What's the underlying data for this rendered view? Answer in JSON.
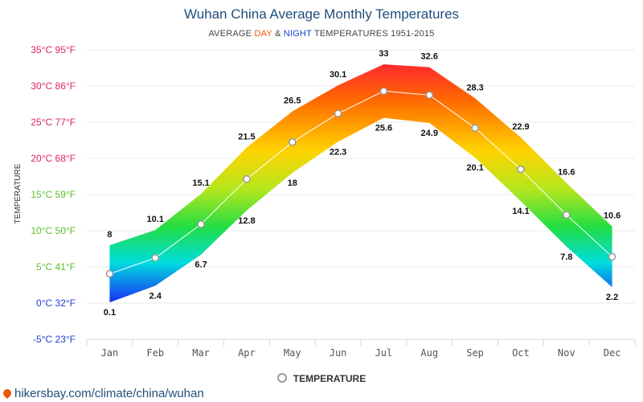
{
  "title": "Wuhan China Average Monthly Temperatures",
  "subtitle": {
    "prefix": "AVERAGE ",
    "day": "DAY",
    "amp": " & ",
    "night": "NIGHT",
    "suffix": " TEMPERATURES 1951-2015"
  },
  "legend": {
    "label": "TEMPERATURE"
  },
  "footer": {
    "url": "hikersbay.com/climate/china/wuhan"
  },
  "colors": {
    "title": "#1f4e79",
    "day": "#e8590c",
    "night": "#1c3fd1"
  },
  "chart_data": {
    "type": "area",
    "title": "Wuhan China Average Monthly Temperatures",
    "ylabel": "TEMPERATURE",
    "ylim": [
      -5,
      35
    ],
    "y_ticks": [
      {
        "value": 35,
        "label": "35°C 95°F",
        "color": "#e0245e"
      },
      {
        "value": 30,
        "label": "30°C 86°F",
        "color": "#e0245e"
      },
      {
        "value": 25,
        "label": "25°C 77°F",
        "color": "#e0245e"
      },
      {
        "value": 20,
        "label": "20°C 68°F",
        "color": "#e0245e"
      },
      {
        "value": 15,
        "label": "15°C 59°F",
        "color": "#5cbf2a"
      },
      {
        "value": 10,
        "label": "10°C 50°F",
        "color": "#5cbf2a"
      },
      {
        "value": 5,
        "label": "5°C 41°F",
        "color": "#5cbf2a"
      },
      {
        "value": 0,
        "label": "0°C 32°F",
        "color": "#1c3fd1"
      },
      {
        "value": -5,
        "label": "-5°C 23°F",
        "color": "#1c3fd1"
      }
    ],
    "categories": [
      "Jan",
      "Feb",
      "Mar",
      "Apr",
      "May",
      "Jun",
      "Jul",
      "Aug",
      "Sep",
      "Oct",
      "Nov",
      "Dec"
    ],
    "series": [
      {
        "name": "DAY",
        "values": [
          8,
          10.1,
          15.1,
          21.5,
          26.5,
          30.1,
          33,
          32.6,
          28.3,
          22.9,
          16.6,
          10.6
        ]
      },
      {
        "name": "NIGHT",
        "values": [
          0.1,
          2.4,
          6.7,
          12.8,
          18,
          22.3,
          25.6,
          24.9,
          20.1,
          14.1,
          7.8,
          2.2
        ]
      },
      {
        "name": "TEMPERATURE",
        "values": [
          4.05,
          6.25,
          10.9,
          17.15,
          22.25,
          26.2,
          29.3,
          28.75,
          24.2,
          18.5,
          12.2,
          6.4
        ]
      }
    ],
    "grid": true,
    "legend_position": "bottom-center"
  }
}
